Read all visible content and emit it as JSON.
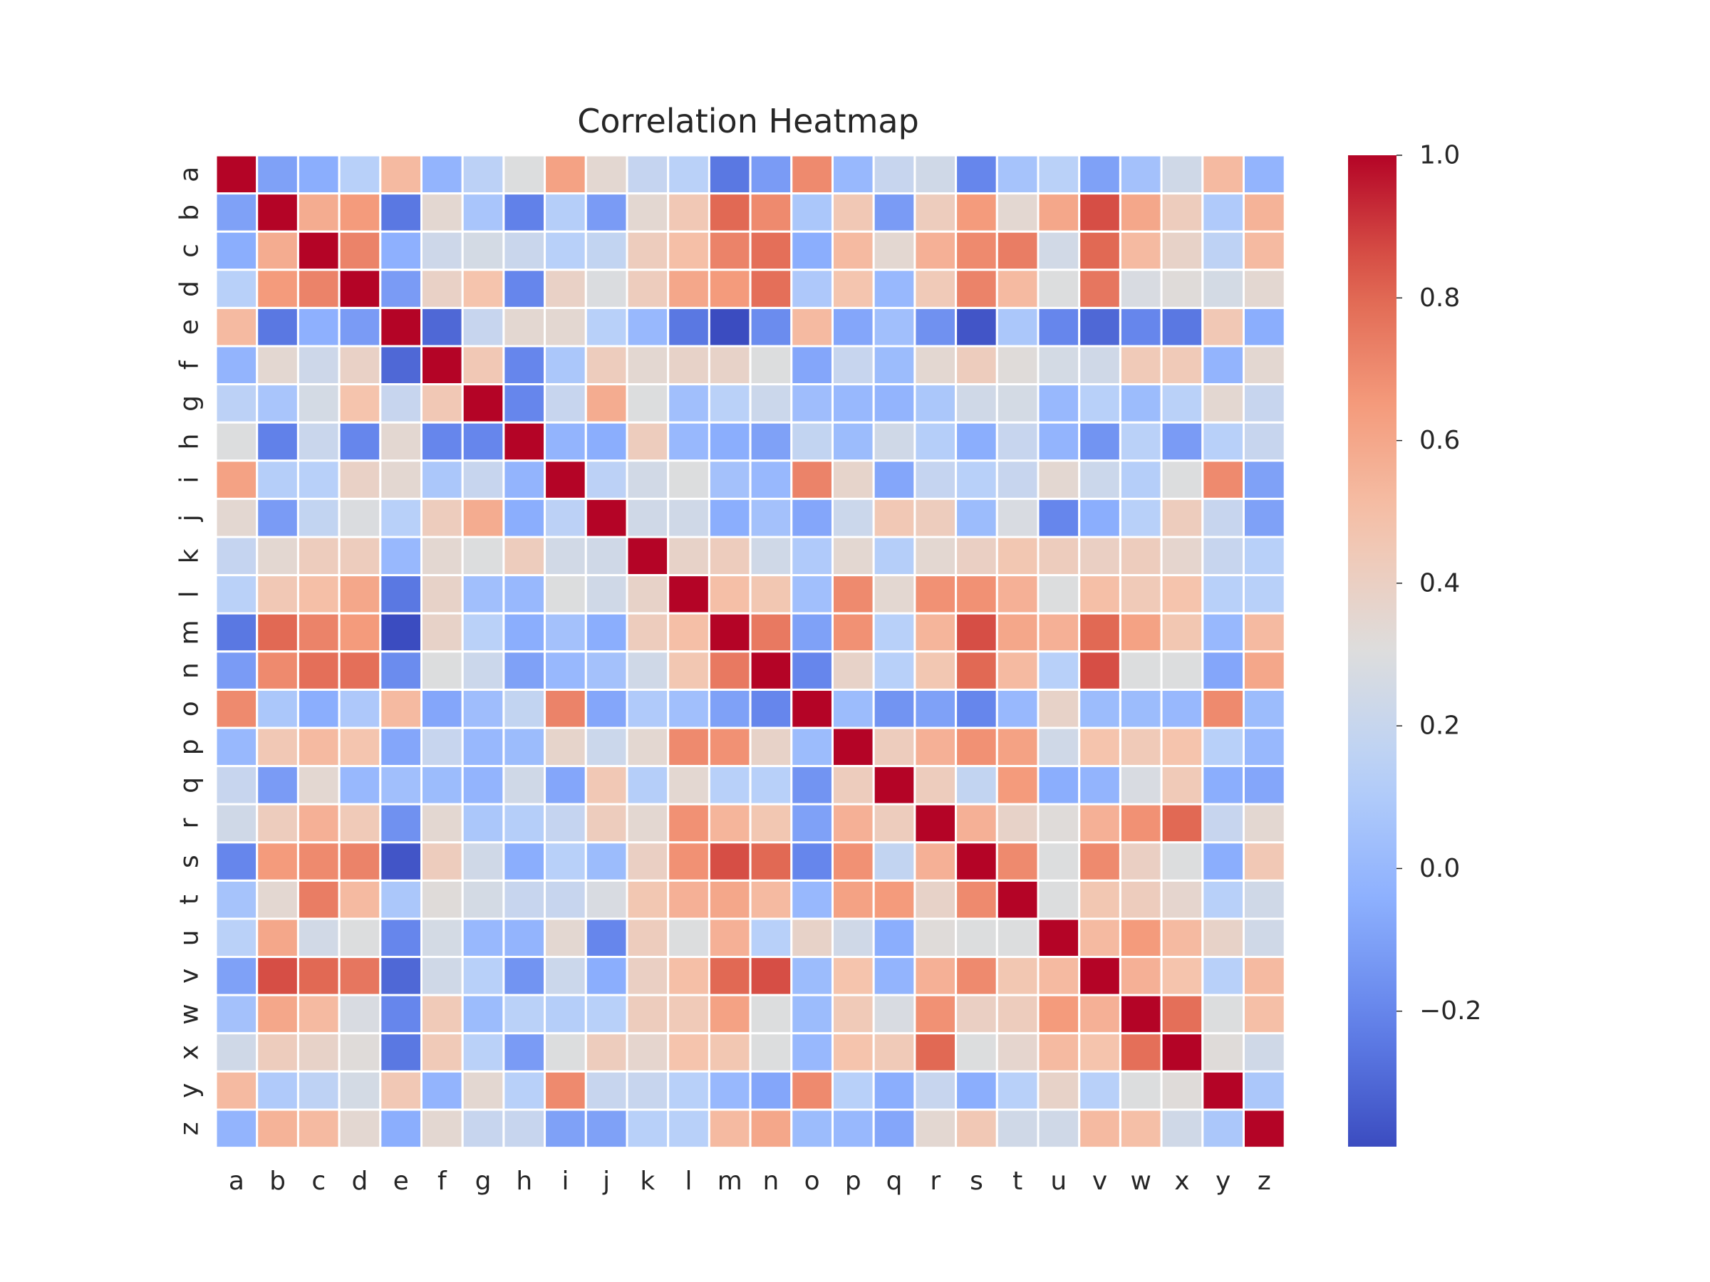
{
  "chart_data": {
    "type": "heatmap",
    "title": "Correlation Heatmap",
    "xlabel": "",
    "ylabel": "",
    "labels": [
      "a",
      "b",
      "c",
      "d",
      "e",
      "f",
      "g",
      "h",
      "i",
      "j",
      "k",
      "l",
      "m",
      "n",
      "o",
      "p",
      "q",
      "r",
      "s",
      "t",
      "u",
      "v",
      "w",
      "x",
      "y",
      "z"
    ],
    "matrix": [
      [
        1.0,
        -0.1,
        -0.05,
        0.13,
        0.52,
        -0.02,
        0.15,
        0.3,
        0.62,
        0.35,
        0.19,
        0.14,
        -0.25,
        -0.12,
        0.7,
        0.0,
        0.2,
        0.24,
        -0.2,
        0.06,
        0.14,
        -0.1,
        0.05,
        0.24,
        0.52,
        -0.02
      ],
      [
        -0.1,
        1.0,
        0.58,
        0.65,
        -0.25,
        0.35,
        0.07,
        -0.22,
        0.12,
        -0.12,
        0.35,
        0.45,
        0.8,
        0.7,
        0.08,
        0.45,
        -0.12,
        0.42,
        0.65,
        0.35,
        0.6,
        0.86,
        0.6,
        0.42,
        0.1,
        0.55
      ],
      [
        -0.05,
        0.58,
        1.0,
        0.72,
        -0.04,
        0.23,
        0.26,
        0.21,
        0.13,
        0.18,
        0.42,
        0.5,
        0.72,
        0.78,
        -0.05,
        0.52,
        0.35,
        0.56,
        0.7,
        0.74,
        0.25,
        0.8,
        0.52,
        0.38,
        0.16,
        0.52
      ],
      [
        0.13,
        0.65,
        0.72,
        1.0,
        -0.12,
        0.39,
        0.48,
        -0.2,
        0.39,
        0.29,
        0.42,
        0.6,
        0.65,
        0.78,
        0.09,
        0.47,
        0.0,
        0.44,
        0.72,
        0.52,
        0.3,
        0.76,
        0.28,
        0.32,
        0.26,
        0.35
      ],
      [
        0.52,
        -0.25,
        -0.04,
        -0.12,
        1.0,
        -0.3,
        0.2,
        0.35,
        0.35,
        0.13,
        0.0,
        -0.25,
        -0.39,
        -0.18,
        0.52,
        -0.08,
        0.04,
        -0.16,
        -0.36,
        0.08,
        -0.2,
        -0.3,
        -0.2,
        -0.25,
        0.45,
        -0.05
      ],
      [
        -0.02,
        0.35,
        0.23,
        0.39,
        -0.3,
        1.0,
        0.45,
        -0.2,
        0.08,
        0.42,
        0.35,
        0.38,
        0.38,
        0.3,
        -0.08,
        0.2,
        0.02,
        0.35,
        0.42,
        0.32,
        0.26,
        0.24,
        0.44,
        0.44,
        -0.02,
        0.35
      ],
      [
        0.15,
        0.07,
        0.26,
        0.48,
        0.2,
        0.45,
        1.0,
        -0.2,
        0.2,
        0.58,
        0.3,
        0.04,
        0.14,
        0.22,
        0.03,
        0.0,
        -0.02,
        0.08,
        0.24,
        0.26,
        0.0,
        0.13,
        0.02,
        0.14,
        0.35,
        0.2
      ],
      [
        0.3,
        -0.22,
        0.21,
        -0.2,
        0.35,
        -0.2,
        -0.2,
        1.0,
        -0.02,
        -0.05,
        0.42,
        0.0,
        -0.05,
        -0.1,
        0.18,
        0.02,
        0.24,
        0.12,
        -0.05,
        0.2,
        -0.02,
        -0.15,
        0.14,
        -0.12,
        0.13,
        0.2
      ],
      [
        0.62,
        0.12,
        0.13,
        0.39,
        0.35,
        0.08,
        0.2,
        -0.02,
        1.0,
        0.15,
        0.25,
        0.3,
        0.05,
        0.0,
        0.72,
        0.37,
        -0.08,
        0.19,
        0.13,
        0.2,
        0.35,
        0.22,
        0.12,
        0.3,
        0.7,
        -0.1
      ],
      [
        0.35,
        -0.12,
        0.18,
        0.29,
        0.13,
        0.42,
        0.58,
        -0.05,
        0.15,
        1.0,
        0.24,
        0.24,
        -0.05,
        0.05,
        -0.08,
        0.22,
        0.45,
        0.42,
        0.02,
        0.28,
        -0.2,
        -0.05,
        0.13,
        0.42,
        0.2,
        -0.1
      ],
      [
        0.19,
        0.35,
        0.42,
        0.42,
        0.0,
        0.35,
        0.3,
        0.42,
        0.25,
        0.24,
        1.0,
        0.38,
        0.42,
        0.24,
        0.1,
        0.35,
        0.12,
        0.35,
        0.4,
        0.46,
        0.42,
        0.4,
        0.42,
        0.36,
        0.2,
        0.13
      ],
      [
        0.14,
        0.45,
        0.5,
        0.6,
        -0.25,
        0.38,
        0.04,
        0.0,
        0.3,
        0.24,
        0.38,
        1.0,
        0.5,
        0.46,
        0.04,
        0.7,
        0.35,
        0.68,
        0.68,
        0.56,
        0.3,
        0.5,
        0.44,
        0.48,
        0.13,
        0.13
      ],
      [
        -0.25,
        0.8,
        0.72,
        0.65,
        -0.39,
        0.38,
        0.14,
        -0.05,
        0.05,
        -0.05,
        0.42,
        0.5,
        1.0,
        0.75,
        -0.1,
        0.68,
        0.13,
        0.54,
        0.86,
        0.6,
        0.56,
        0.8,
        0.62,
        0.46,
        0.0,
        0.52
      ],
      [
        -0.12,
        0.7,
        0.78,
        0.78,
        -0.18,
        0.3,
        0.22,
        -0.1,
        0.0,
        0.05,
        0.24,
        0.46,
        0.75,
        1.0,
        -0.2,
        0.38,
        0.13,
        0.46,
        0.8,
        0.52,
        0.13,
        0.86,
        0.3,
        0.3,
        -0.08,
        0.6
      ],
      [
        0.7,
        0.08,
        -0.05,
        0.09,
        0.52,
        -0.08,
        0.03,
        0.18,
        0.72,
        -0.08,
        0.1,
        0.04,
        -0.1,
        -0.2,
        1.0,
        0.02,
        -0.15,
        -0.1,
        -0.2,
        0.0,
        0.38,
        0.02,
        0.02,
        0.0,
        0.7,
        0.02
      ],
      [
        0.0,
        0.45,
        0.52,
        0.47,
        -0.08,
        0.2,
        0.0,
        0.02,
        0.37,
        0.22,
        0.35,
        0.7,
        0.68,
        0.38,
        0.02,
        1.0,
        0.42,
        0.56,
        0.68,
        0.62,
        0.24,
        0.48,
        0.44,
        0.48,
        0.13,
        0.0
      ],
      [
        0.2,
        -0.12,
        0.35,
        0.0,
        0.04,
        0.02,
        -0.02,
        0.24,
        -0.08,
        0.45,
        0.12,
        0.35,
        0.13,
        0.13,
        -0.15,
        0.42,
        1.0,
        0.42,
        0.18,
        0.65,
        -0.05,
        -0.02,
        0.28,
        0.44,
        -0.05,
        -0.08
      ],
      [
        0.24,
        0.42,
        0.56,
        0.44,
        -0.16,
        0.35,
        0.08,
        0.12,
        0.19,
        0.42,
        0.35,
        0.68,
        0.54,
        0.46,
        -0.1,
        0.56,
        0.42,
        1.0,
        0.56,
        0.38,
        0.32,
        0.56,
        0.68,
        0.8,
        0.2,
        0.35
      ],
      [
        -0.2,
        0.65,
        0.7,
        0.72,
        -0.36,
        0.42,
        0.24,
        -0.05,
        0.13,
        0.02,
        0.4,
        0.68,
        0.86,
        0.8,
        -0.2,
        0.68,
        0.18,
        0.56,
        1.0,
        0.7,
        0.3,
        0.7,
        0.4,
        0.3,
        -0.05,
        0.45
      ],
      [
        0.06,
        0.35,
        0.74,
        0.52,
        0.08,
        0.32,
        0.26,
        0.2,
        0.2,
        0.28,
        0.46,
        0.56,
        0.6,
        0.52,
        0.0,
        0.62,
        0.65,
        0.38,
        0.7,
        1.0,
        0.3,
        0.46,
        0.42,
        0.36,
        0.13,
        0.24
      ],
      [
        0.14,
        0.6,
        0.25,
        0.3,
        -0.2,
        0.26,
        0.0,
        -0.02,
        0.35,
        -0.2,
        0.42,
        0.3,
        0.56,
        0.13,
        0.38,
        0.24,
        -0.05,
        0.32,
        0.3,
        0.3,
        1.0,
        0.52,
        0.65,
        0.52,
        0.38,
        0.24
      ],
      [
        -0.1,
        0.86,
        0.8,
        0.76,
        -0.3,
        0.24,
        0.13,
        -0.15,
        0.22,
        -0.05,
        0.4,
        0.5,
        0.8,
        0.86,
        0.02,
        0.48,
        -0.02,
        0.56,
        0.7,
        0.46,
        0.52,
        1.0,
        0.56,
        0.48,
        0.13,
        0.52
      ],
      [
        0.05,
        0.6,
        0.52,
        0.28,
        -0.2,
        0.44,
        0.02,
        0.14,
        0.12,
        0.13,
        0.42,
        0.44,
        0.62,
        0.3,
        0.02,
        0.44,
        0.28,
        0.68,
        0.4,
        0.42,
        0.65,
        0.56,
        1.0,
        0.78,
        0.3,
        0.5
      ],
      [
        0.24,
        0.42,
        0.38,
        0.32,
        -0.25,
        0.44,
        0.14,
        -0.12,
        0.3,
        0.42,
        0.36,
        0.48,
        0.46,
        0.3,
        0.0,
        0.48,
        0.44,
        0.8,
        0.3,
        0.36,
        0.52,
        0.48,
        0.78,
        1.0,
        0.32,
        0.24
      ],
      [
        0.52,
        0.1,
        0.16,
        0.26,
        0.45,
        -0.02,
        0.35,
        0.13,
        0.7,
        0.2,
        0.2,
        0.13,
        0.0,
        -0.08,
        0.7,
        0.13,
        -0.05,
        0.2,
        -0.05,
        0.13,
        0.38,
        0.13,
        0.3,
        0.32,
        1.0,
        0.08
      ],
      [
        -0.02,
        0.55,
        0.52,
        0.35,
        -0.05,
        0.35,
        0.2,
        0.2,
        -0.1,
        -0.1,
        0.13,
        0.13,
        0.52,
        0.6,
        0.02,
        0.0,
        -0.08,
        0.35,
        0.45,
        0.24,
        0.24,
        0.52,
        0.5,
        0.24,
        0.08,
        1.0
      ]
    ],
    "vmin": -0.39,
    "vmax": 1.0,
    "colormap": "coolwarm",
    "linecolor": "#ffffff",
    "colorbar": {
      "ticks": [
        1.0,
        0.8,
        0.6,
        0.4,
        0.2,
        0.0,
        -0.2
      ],
      "tick_labels": [
        "1.0",
        "0.8",
        "0.6",
        "0.4",
        "0.2",
        "0.0",
        "−0.2"
      ]
    }
  }
}
